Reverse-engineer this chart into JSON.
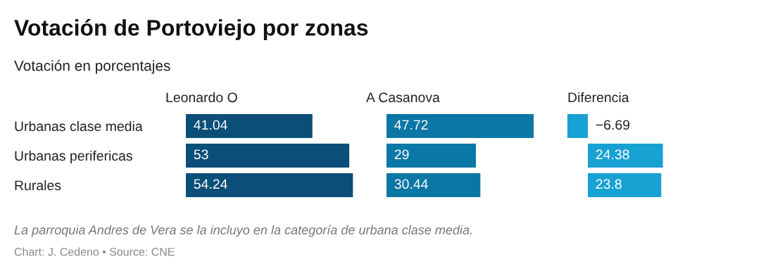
{
  "chart_data": [
    {
      "type": "bar",
      "orientation": "horizontal",
      "title": "Votación de Portoviejo por zonas",
      "subtitle": "Votación en porcentajes",
      "categories": [
        "Urbanas clase media",
        "Urbanas perifericas",
        "Rurales"
      ],
      "series": [
        {
          "name": "Leonardo O",
          "color": "#0b4f79",
          "values": [
            41.04,
            53,
            54.24
          ]
        }
      ],
      "data_labels": true,
      "tick_labels": "y",
      "grid": false,
      "legend": false,
      "annotations": [
        "La parroquia Andres de Vera se la incluyo en la categoría de urbana clase media.",
        "Chart: J. Cedeno • Source: CNE"
      ]
    },
    {
      "type": "bar",
      "orientation": "horizontal",
      "categories": [
        null,
        null,
        null
      ],
      "series": [
        {
          "name": "A Casanova",
          "color": "#0a77a5",
          "values": [
            47.72,
            29,
            30.44
          ]
        }
      ],
      "data_labels": true,
      "tick_labels": false,
      "grid": false,
      "legend": false
    },
    {
      "type": "bar",
      "orientation": "horizontal",
      "categories": [
        null,
        null,
        null
      ],
      "series": [
        {
          "name": "Diferencia",
          "color": "#18a1d3",
          "values": [
            -6.69,
            24.38,
            23.8
          ]
        }
      ],
      "data_labels": true,
      "tick_labels": false,
      "grid": false,
      "legend": false
    }
  ]
}
